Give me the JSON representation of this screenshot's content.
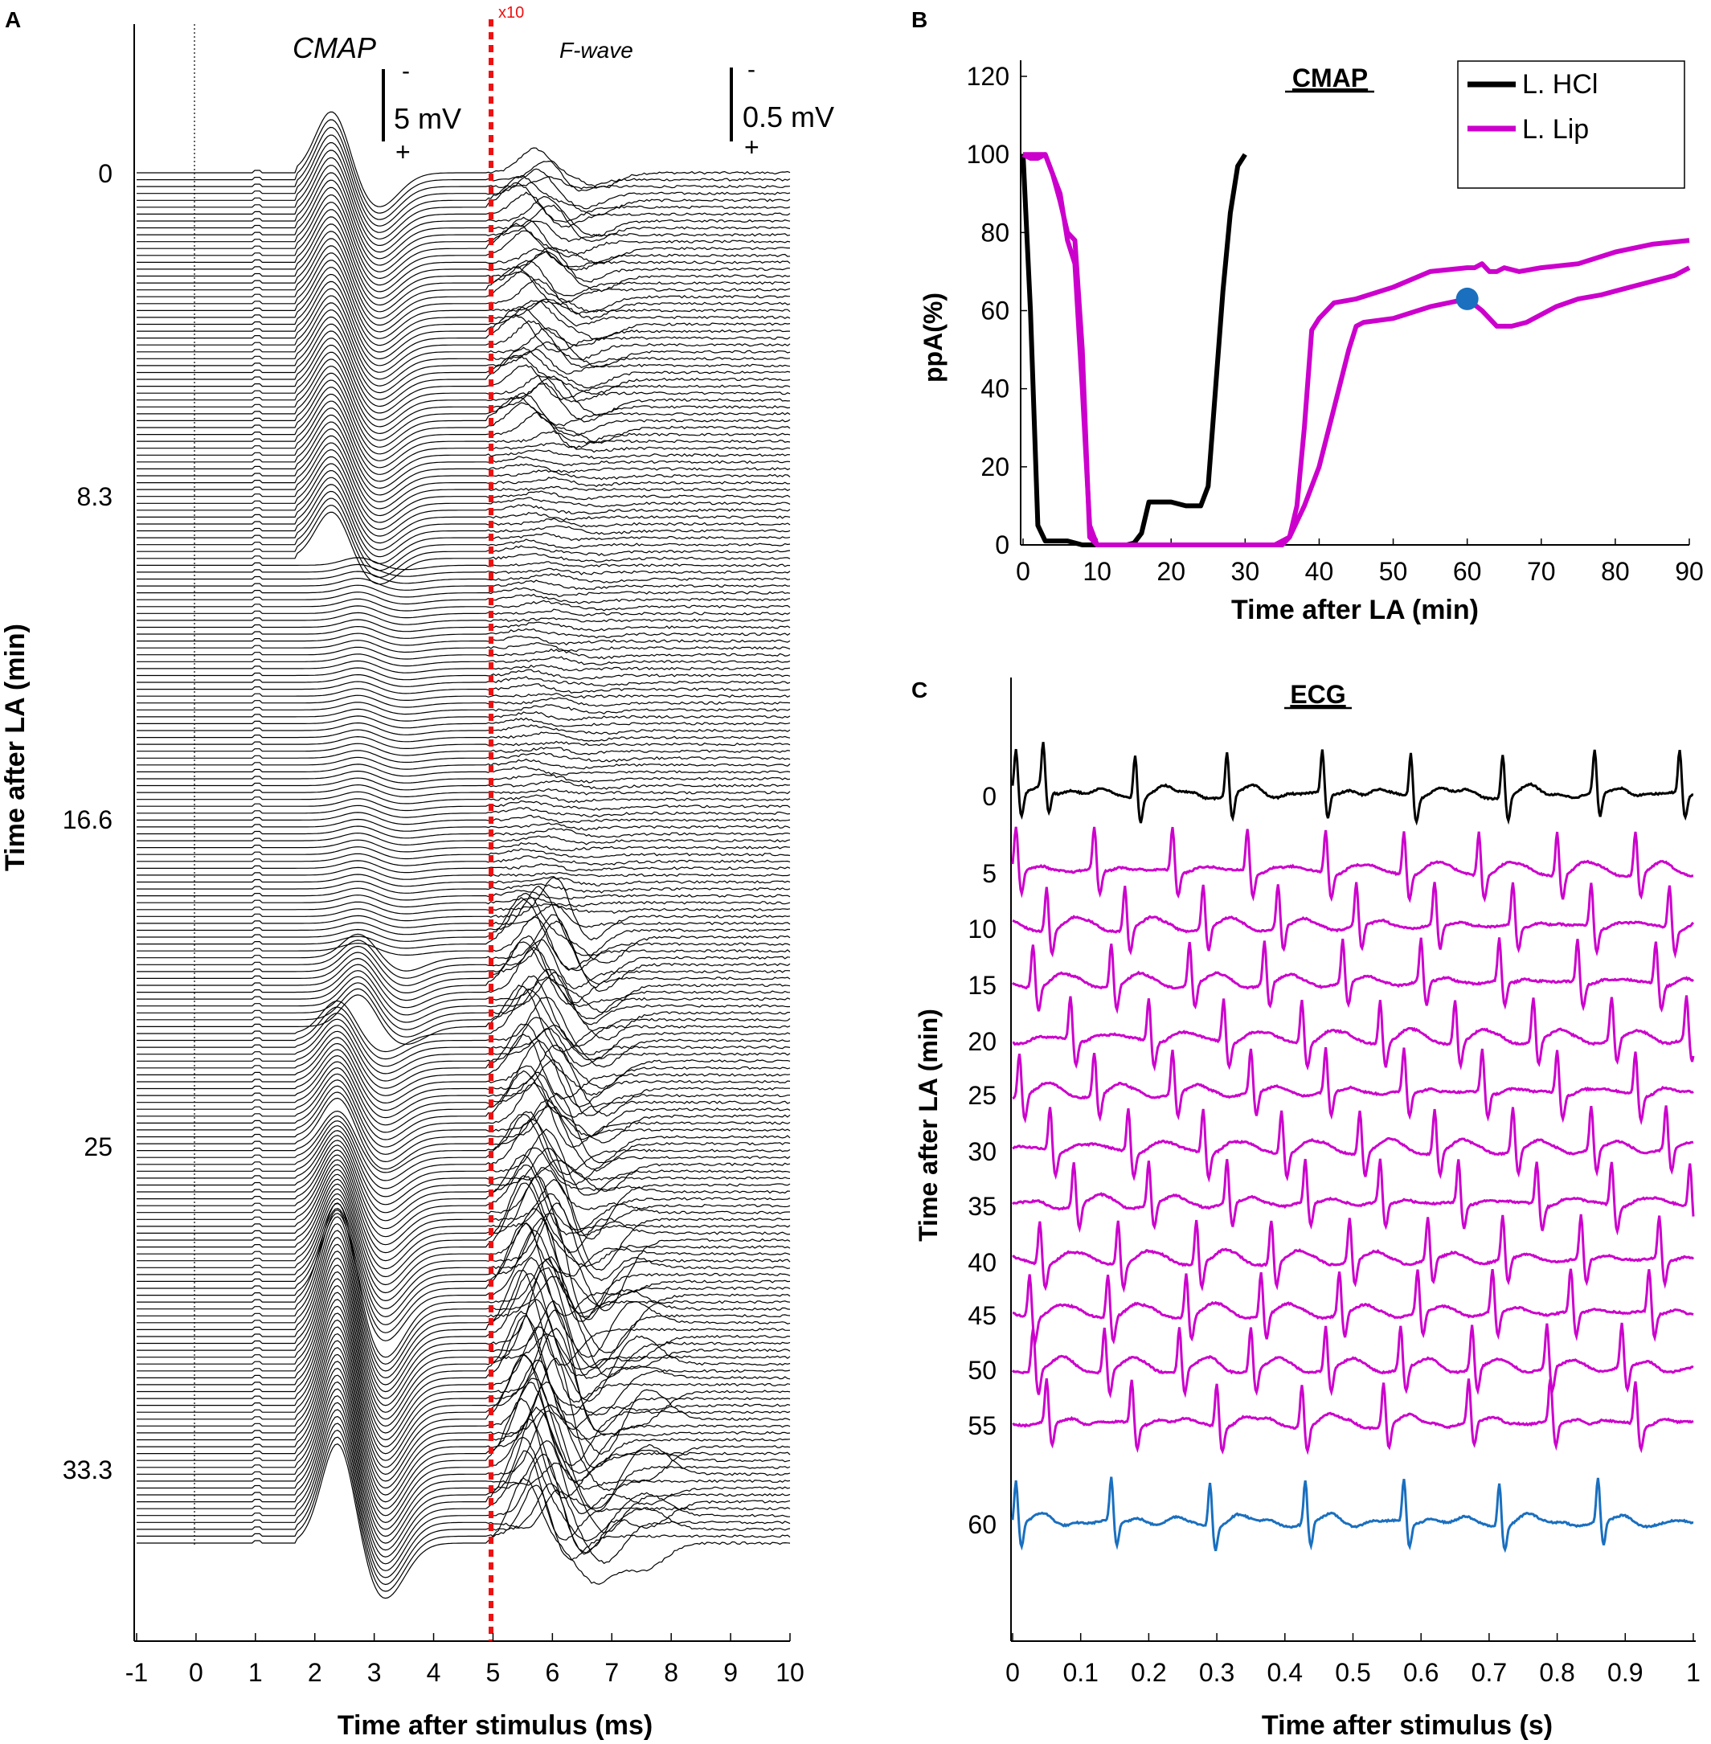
{
  "panel_labels": {
    "a": "A",
    "b": "B",
    "c": "C"
  },
  "colors": {
    "black": "#000000",
    "magenta": "#cc00cc",
    "blue": "#1a6fbf",
    "red": "#ee1111"
  },
  "chart_data": [
    {
      "id": "A",
      "type": "line",
      "description_type": "waterfall traces",
      "xlabel": "Time after stimulus (ms)",
      "ylabel": "Time after LA (min)",
      "xlim": [
        -1,
        10
      ],
      "xticks": [
        "-1",
        "0",
        "1",
        "2",
        "3",
        "4",
        "5",
        "6",
        "7",
        "8",
        "9",
        "10"
      ],
      "yticks": [
        {
          "label": "0",
          "minutes": 0
        },
        {
          "label": "8.3",
          "minutes": 8.3
        },
        {
          "label": "16.6",
          "minutes": 16.6
        },
        {
          "label": "25",
          "minutes": 25
        },
        {
          "label": "33.3",
          "minutes": 33.3
        }
      ],
      "trace_count": 200,
      "annotations": {
        "cmap": "CMAP",
        "fwave": "F-wave",
        "gain_marker": "x10",
        "cmap_scale": "5 mV",
        "fwave_scale": "0.5 mV",
        "minus": "-",
        "plus": "+"
      },
      "gain_change_ms": 5
    },
    {
      "id": "B",
      "type": "line",
      "title": "CMAP",
      "xlabel": "Time after LA (min)",
      "ylabel": "ppA(%)",
      "xlim": [
        0,
        90
      ],
      "ylim": [
        0,
        120
      ],
      "xticks": [
        0,
        10,
        20,
        30,
        40,
        50,
        60,
        70,
        80,
        90
      ],
      "yticks": [
        0,
        20,
        40,
        60,
        80,
        100,
        120
      ],
      "legend": {
        "position": "top-right"
      },
      "series": [
        {
          "name": "L. HCl",
          "color": "#000000",
          "x": [
            0,
            1,
            2,
            3,
            4,
            6,
            8,
            10,
            12,
            14,
            15,
            16,
            17,
            18,
            20,
            22,
            24,
            25,
            26,
            27,
            28,
            29,
            30
          ],
          "y": [
            100,
            60,
            5,
            1,
            1,
            1,
            0,
            0,
            0,
            0,
            0.5,
            3,
            11,
            11,
            11,
            10,
            10,
            15,
            40,
            65,
            85,
            97,
            100
          ]
        },
        {
          "name": "L. Lip",
          "color": "#cc00cc",
          "x": [
            0,
            1,
            2,
            3,
            4,
            5,
            6,
            7,
            8,
            9,
            10,
            15,
            20,
            25,
            30,
            35,
            36,
            37,
            38,
            39,
            40,
            42,
            45,
            50,
            55,
            60,
            61,
            62,
            63,
            64,
            65,
            67,
            70,
            75,
            80,
            85,
            90
          ],
          "y": [
            100,
            100,
            100,
            100,
            95,
            90,
            78,
            72,
            40,
            5,
            0,
            0,
            0,
            0,
            0,
            0,
            2,
            10,
            30,
            55,
            58,
            62,
            63,
            66,
            70,
            71,
            71,
            72,
            70,
            70,
            71,
            70,
            71,
            72,
            75,
            77,
            78
          ]
        },
        {
          "name": "L. Lip",
          "color": "#cc00cc",
          "legend": false,
          "x": [
            0,
            1,
            2,
            3,
            4,
            5,
            6,
            7,
            8,
            9,
            10,
            15,
            20,
            25,
            30,
            34,
            36,
            38,
            40,
            42,
            44,
            45,
            46,
            50,
            55,
            60
          ],
          "y": [
            100,
            99,
            99,
            100,
            95,
            88,
            80,
            78,
            50,
            2,
            0,
            0,
            0,
            0,
            0,
            0,
            2,
            10,
            20,
            35,
            50,
            56,
            57,
            58,
            61,
            63
          ]
        },
        {
          "name": "L. Lip",
          "color": "#cc00cc",
          "legend": false,
          "x": [
            60,
            62,
            64,
            66,
            68,
            70,
            72,
            75,
            78,
            80,
            82,
            84,
            86,
            88,
            90
          ],
          "y": [
            63,
            60,
            56,
            56,
            57,
            59,
            61,
            63,
            64,
            65,
            66,
            67,
            68,
            69,
            71
          ]
        }
      ],
      "highlight_point": {
        "x": 60,
        "y": 63,
        "color": "#1a6fbf"
      }
    },
    {
      "id": "C",
      "type": "line",
      "title": "ECG",
      "xlabel": "Time after stimulus (s)",
      "ylabel": "Time after LA (min)",
      "xlim": [
        0,
        1
      ],
      "xticks": [
        "0",
        "0.1",
        "0.2",
        "0.3",
        "0.4",
        "0.5",
        "0.6",
        "0.7",
        "0.8",
        "0.9",
        "1"
      ],
      "rows": [
        {
          "label": "0",
          "color": "#000000",
          "beats": [
            0.005,
            0.045,
            0.18,
            0.315,
            0.455,
            0.585,
            0.72,
            0.855,
            0.98
          ]
        },
        {
          "label": "5",
          "color": "#cc00cc",
          "beats": [
            0.005,
            0.12,
            0.235,
            0.345,
            0.46,
            0.575,
            0.685,
            0.8,
            0.915
          ]
        },
        {
          "label": "10",
          "color": "#cc00cc",
          "beats": [
            0.05,
            0.165,
            0.28,
            0.39,
            0.505,
            0.62,
            0.735,
            0.85,
            0.965
          ]
        },
        {
          "label": "15",
          "color": "#cc00cc",
          "beats": [
            0.03,
            0.145,
            0.26,
            0.37,
            0.485,
            0.6,
            0.715,
            0.83,
            0.945
          ]
        },
        {
          "label": "20",
          "color": "#cc00cc",
          "beats": [
            0.085,
            0.2,
            0.31,
            0.425,
            0.54,
            0.65,
            0.765,
            0.88,
            0.99
          ]
        },
        {
          "label": "25",
          "color": "#cc00cc",
          "beats": [
            0.01,
            0.12,
            0.235,
            0.35,
            0.46,
            0.575,
            0.69,
            0.8,
            0.915
          ]
        },
        {
          "label": "30",
          "color": "#cc00cc",
          "beats": [
            0.055,
            0.17,
            0.28,
            0.395,
            0.51,
            0.62,
            0.735,
            0.85,
            0.96
          ]
        },
        {
          "label": "35",
          "color": "#cc00cc",
          "beats": [
            0.09,
            0.2,
            0.315,
            0.43,
            0.54,
            0.655,
            0.77,
            0.88,
            0.995
          ]
        },
        {
          "label": "40",
          "color": "#cc00cc",
          "beats": [
            0.04,
            0.155,
            0.27,
            0.38,
            0.495,
            0.61,
            0.72,
            0.835,
            0.95
          ]
        },
        {
          "label": "45",
          "color": "#cc00cc",
          "beats": [
            0.025,
            0.14,
            0.255,
            0.365,
            0.48,
            0.595,
            0.705,
            0.82,
            0.935
          ]
        },
        {
          "label": "50",
          "color": "#cc00cc",
          "beats": [
            0.03,
            0.135,
            0.245,
            0.35,
            0.46,
            0.57,
            0.675,
            0.785,
            0.895
          ]
        },
        {
          "label": "55",
          "color": "#cc00cc",
          "beats": [
            0.05,
            0.175,
            0.3,
            0.425,
            0.545,
            0.67,
            0.79,
            0.915
          ]
        },
        {
          "label": "60",
          "color": "#1a6fbf",
          "beats": [
            0.005,
            0.145,
            0.29,
            0.43,
            0.575,
            0.715,
            0.86
          ]
        }
      ]
    }
  ]
}
